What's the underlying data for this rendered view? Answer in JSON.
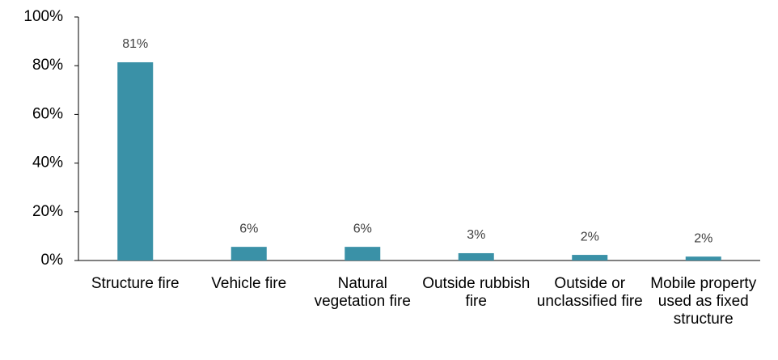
{
  "chart_data": {
    "type": "bar",
    "categories": [
      "Structure fire",
      "Vehicle fire",
      "Natural vegetation fire",
      "Outside rubbish fire",
      "Outside or unclassified fire",
      "Mobile property used as fixed structure"
    ],
    "values": [
      81.4,
      5.6,
      5.6,
      3.0,
      2.3,
      1.6
    ],
    "value_labels": [
      "81%",
      "6%",
      "6%",
      "3%",
      "2%",
      "2%"
    ],
    "color": "#3a91a7",
    "ylim": [
      0,
      100
    ],
    "yticks": [
      {
        "value": 0,
        "label": "0%"
      },
      {
        "value": 20,
        "label": "20%"
      },
      {
        "value": 40,
        "label": "40%"
      },
      {
        "value": 60,
        "label": "60%"
      },
      {
        "value": 80,
        "label": "80%"
      },
      {
        "value": 100,
        "label": "100%"
      }
    ],
    "grid": false
  }
}
